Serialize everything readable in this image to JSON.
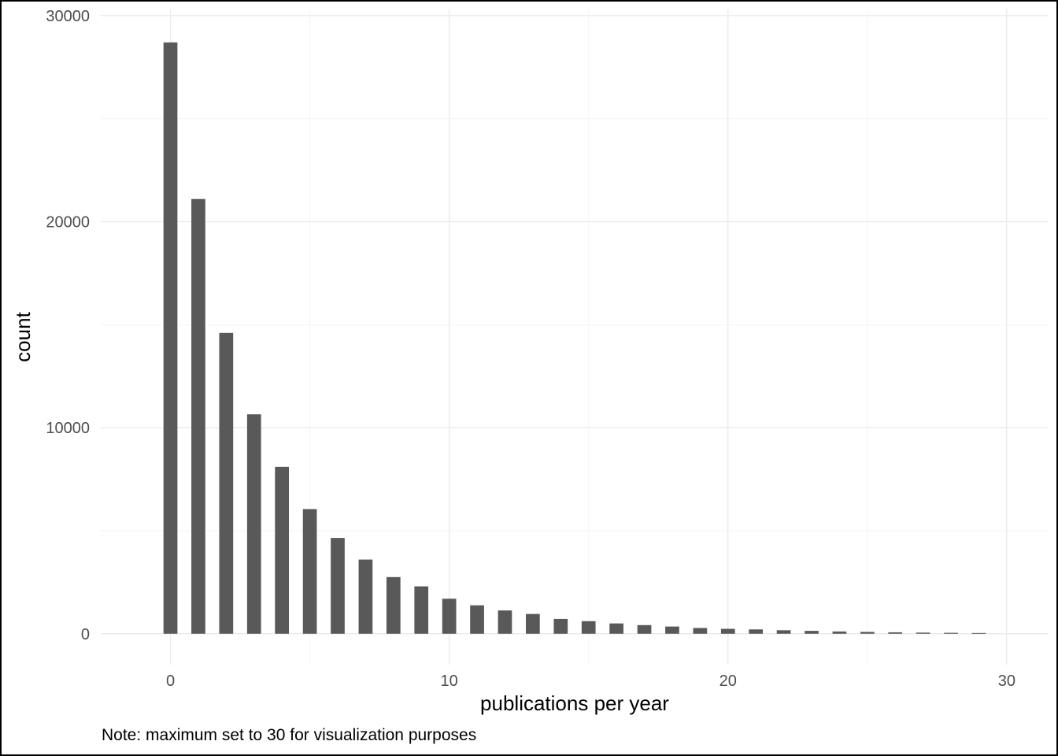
{
  "chart_data": {
    "type": "bar",
    "x": [
      0,
      1,
      2,
      3,
      4,
      5,
      6,
      7,
      8,
      9,
      10,
      11,
      12,
      13,
      14,
      15,
      16,
      17,
      18,
      19,
      20,
      21,
      22,
      23,
      24,
      25,
      26,
      27,
      28,
      29
    ],
    "values": [
      28700,
      21100,
      14600,
      10650,
      8100,
      6050,
      4650,
      3600,
      2750,
      2300,
      1700,
      1380,
      1130,
      960,
      720,
      610,
      500,
      420,
      350,
      280,
      240,
      210,
      170,
      140,
      110,
      90,
      70,
      55,
      45,
      35
    ],
    "xlabel": "publications per year",
    "ylabel": "count",
    "xlim": [
      -2.5,
      31.5
    ],
    "ylim": [
      -1500,
      30300
    ],
    "x_ticks": [
      0,
      10,
      20,
      30
    ],
    "y_ticks": [
      0,
      10000,
      20000,
      30000
    ],
    "x_tick_labels": [
      "0",
      "10",
      "20",
      "30"
    ],
    "y_tick_labels": [
      "0",
      "10000",
      "20000",
      "30000"
    ],
    "grid": true,
    "bar_color": "#595959",
    "caption": "Note: maximum set to 30 for visualization purposes"
  }
}
